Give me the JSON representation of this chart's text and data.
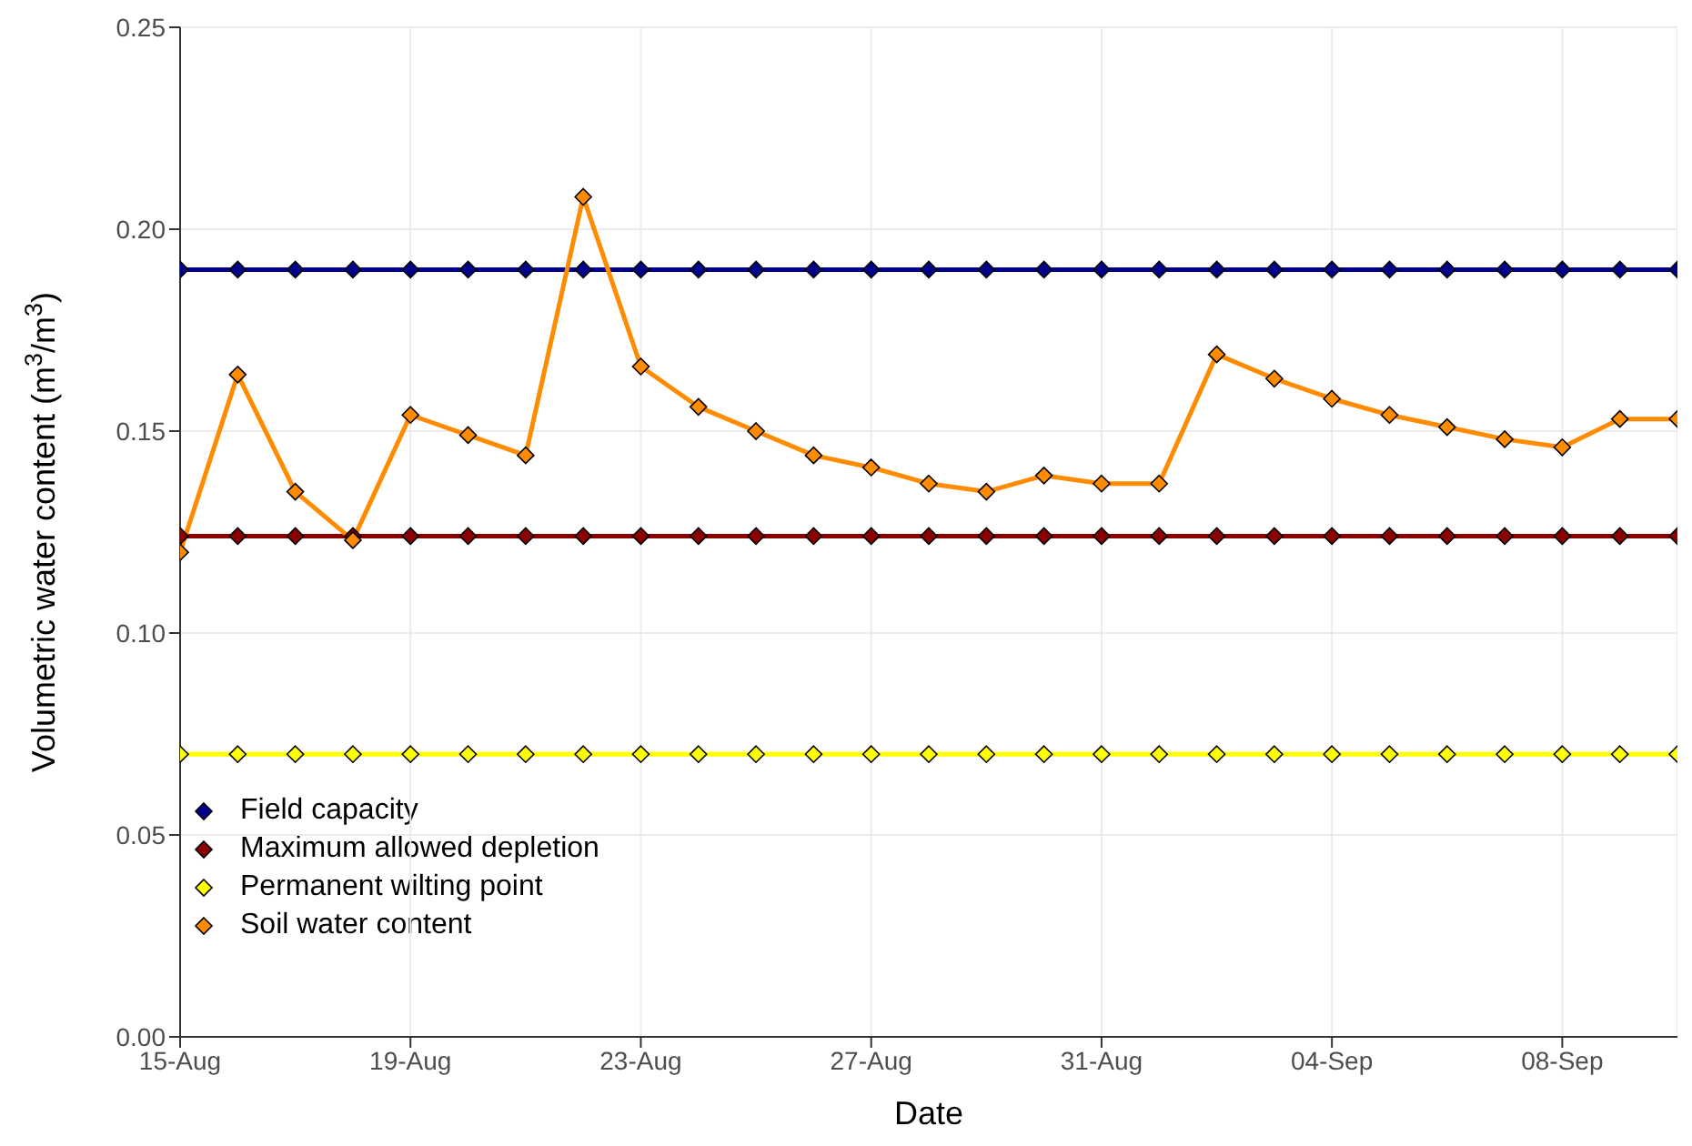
{
  "chart_data": {
    "type": "line",
    "xlabel": "Date",
    "ylabel": "Volumetric water content (m$^{3}$/m$^{3}$)",
    "x": [
      "--08-15",
      "--08-16",
      "--08-17",
      "--08-18",
      "--08-19",
      "--08-20",
      "--08-21",
      "--08-22",
      "--08-23",
      "--08-24",
      "--08-25",
      "--08-26",
      "--08-27",
      "--08-28",
      "--08-29",
      "--08-30",
      "--08-31",
      "--09-01",
      "--09-02",
      "--09-03",
      "--09-04",
      "--09-05",
      "--09-06",
      "--09-07",
      "--09-08",
      "--09-09",
      "--09-10"
    ],
    "series": [
      {
        "name": "Field capacity",
        "color": "#00008b",
        "values": [
          0.19,
          0.19,
          0.19,
          0.19,
          0.19,
          0.19,
          0.19,
          0.19,
          0.19,
          0.19,
          0.19,
          0.19,
          0.19,
          0.19,
          0.19,
          0.19,
          0.19,
          0.19,
          0.19,
          0.19,
          0.19,
          0.19,
          0.19,
          0.19,
          0.19,
          0.19,
          0.19
        ]
      },
      {
        "name": "Maximum allowed depletion",
        "color": "#8b0000",
        "values": [
          0.124,
          0.124,
          0.124,
          0.124,
          0.124,
          0.124,
          0.124,
          0.124,
          0.124,
          0.124,
          0.124,
          0.124,
          0.124,
          0.124,
          0.124,
          0.124,
          0.124,
          0.124,
          0.124,
          0.124,
          0.124,
          0.124,
          0.124,
          0.124,
          0.124,
          0.124,
          0.124
        ]
      },
      {
        "name": "Permanent wilting point",
        "color": "#ffff00",
        "values": [
          0.07,
          0.07,
          0.07,
          0.07,
          0.07,
          0.07,
          0.07,
          0.07,
          0.07,
          0.07,
          0.07,
          0.07,
          0.07,
          0.07,
          0.07,
          0.07,
          0.07,
          0.07,
          0.07,
          0.07,
          0.07,
          0.07,
          0.07,
          0.07,
          0.07,
          0.07,
          0.07
        ]
      },
      {
        "name": "Soil water content",
        "color": "#ff8c00",
        "values": [
          0.12,
          0.164,
          0.135,
          0.123,
          0.154,
          0.149,
          0.144,
          0.208,
          0.166,
          0.156,
          0.15,
          0.144,
          0.141,
          0.137,
          0.135,
          0.139,
          0.137,
          0.137,
          0.169,
          0.163,
          0.158,
          0.154,
          0.151,
          0.148,
          0.146,
          0.153,
          0.153
        ]
      }
    ],
    "xlim": [
      "--08-15",
      "--09-10"
    ],
    "xticks": [
      {
        "value": "--08-15",
        "label": "15-Aug"
      },
      {
        "value": "--08-19",
        "label": "19-Aug"
      },
      {
        "value": "--08-23",
        "label": "23-Aug"
      },
      {
        "value": "--08-27",
        "label": "27-Aug"
      },
      {
        "value": "--08-31",
        "label": "31-Aug"
      },
      {
        "value": "--09-04",
        "label": "04-Sep"
      },
      {
        "value": "--09-08",
        "label": "08-Sep"
      }
    ],
    "ylim": [
      0,
      0.25
    ],
    "yticks": [
      {
        "value": 0,
        "label": "0.00"
      },
      {
        "value": 0.05,
        "label": "0.05"
      },
      {
        "value": 0.1,
        "label": "0.10"
      },
      {
        "value": 0.15,
        "label": "0.15"
      },
      {
        "value": 0.2,
        "label": "0.20"
      },
      {
        "value": 0.25,
        "label": "0.25"
      }
    ],
    "grid": true,
    "legend": "bottom left",
    "marker": "diamond",
    "line_style": "solid"
  }
}
